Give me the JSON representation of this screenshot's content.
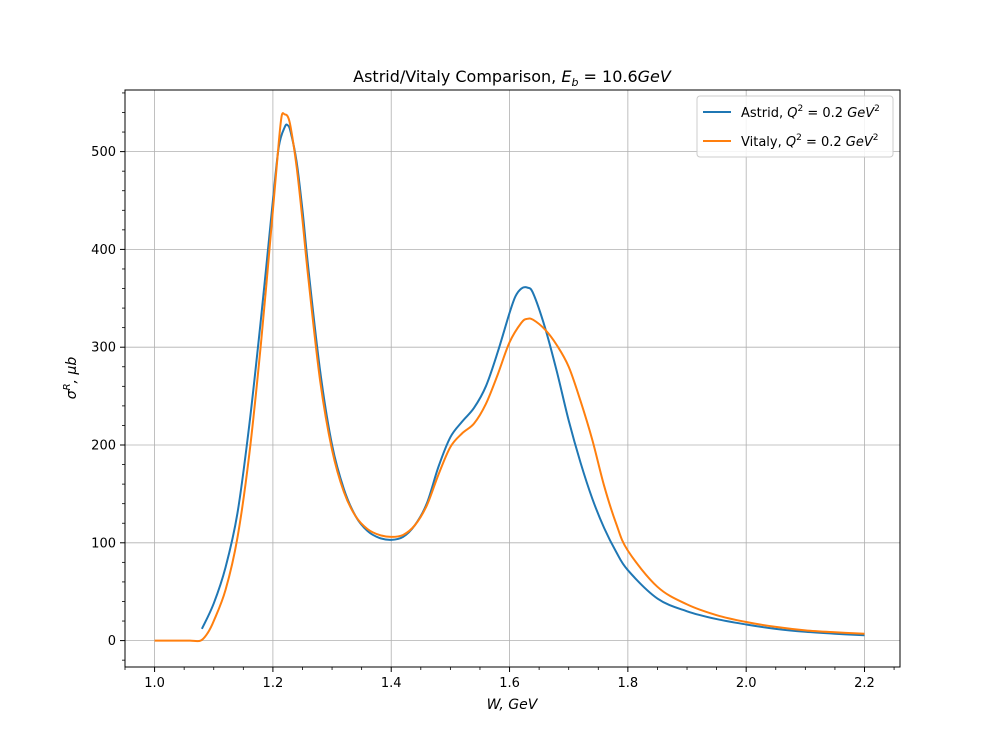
{
  "chart_data": {
    "type": "line",
    "title": "Astrid/Vitaly Comparison, E_b = 10.6GeV",
    "xlabel": "W, GeV",
    "ylabel": "σ^R, μb",
    "xlim": [
      0.95,
      2.26
    ],
    "ylim": [
      -27,
      563
    ],
    "x_ticks": [
      1.0,
      1.2,
      1.4,
      1.6,
      1.8,
      2.0,
      2.2
    ],
    "x_tick_labels": [
      "1.0",
      "1.2",
      "1.4",
      "1.6",
      "1.8",
      "2.0",
      "2.2"
    ],
    "y_ticks": [
      0,
      100,
      200,
      300,
      400,
      500
    ],
    "y_tick_labels": [
      "0",
      "100",
      "200",
      "300",
      "400",
      "500"
    ],
    "grid": true,
    "legend": "top-right",
    "series": [
      {
        "name": "Astrid, Q^2 = 0.2 GeV^2",
        "color": "#1f77b4",
        "points": [
          [
            1.08,
            12
          ],
          [
            1.1,
            38
          ],
          [
            1.12,
            75
          ],
          [
            1.14,
            130
          ],
          [
            1.16,
            220
          ],
          [
            1.18,
            330
          ],
          [
            1.2,
            450
          ],
          [
            1.21,
            505
          ],
          [
            1.22,
            525
          ],
          [
            1.225,
            527
          ],
          [
            1.23,
            520
          ],
          [
            1.24,
            490
          ],
          [
            1.25,
            440
          ],
          [
            1.26,
            380
          ],
          [
            1.28,
            275
          ],
          [
            1.3,
            200
          ],
          [
            1.32,
            155
          ],
          [
            1.34,
            127
          ],
          [
            1.36,
            112
          ],
          [
            1.38,
            105
          ],
          [
            1.4,
            103
          ],
          [
            1.42,
            106
          ],
          [
            1.44,
            118
          ],
          [
            1.46,
            140
          ],
          [
            1.48,
            178
          ],
          [
            1.5,
            208
          ],
          [
            1.52,
            224
          ],
          [
            1.54,
            238
          ],
          [
            1.56,
            260
          ],
          [
            1.58,
            295
          ],
          [
            1.6,
            335
          ],
          [
            1.61,
            352
          ],
          [
            1.62,
            360
          ],
          [
            1.63,
            361
          ],
          [
            1.64,
            355
          ],
          [
            1.66,
            320
          ],
          [
            1.68,
            275
          ],
          [
            1.7,
            225
          ],
          [
            1.72,
            182
          ],
          [
            1.74,
            145
          ],
          [
            1.76,
            115
          ],
          [
            1.78,
            91
          ],
          [
            1.8,
            72
          ],
          [
            1.85,
            43
          ],
          [
            1.9,
            30
          ],
          [
            1.95,
            22
          ],
          [
            2.0,
            16.5
          ],
          [
            2.05,
            12
          ],
          [
            2.1,
            9
          ],
          [
            2.15,
            7
          ],
          [
            2.2,
            5.5
          ]
        ]
      },
      {
        "name": "Vitaly, Q^2 = 0.2 GeV^2",
        "color": "#ff7f0e",
        "points": [
          [
            1.0,
            0
          ],
          [
            1.02,
            0
          ],
          [
            1.04,
            0
          ],
          [
            1.06,
            0
          ],
          [
            1.078,
            0
          ],
          [
            1.09,
            8
          ],
          [
            1.1,
            20
          ],
          [
            1.12,
            52
          ],
          [
            1.14,
            105
          ],
          [
            1.16,
            190
          ],
          [
            1.18,
            305
          ],
          [
            1.2,
            440
          ],
          [
            1.21,
            510
          ],
          [
            1.215,
            537
          ],
          [
            1.22,
            538
          ],
          [
            1.225,
            536
          ],
          [
            1.23,
            525
          ],
          [
            1.24,
            485
          ],
          [
            1.25,
            430
          ],
          [
            1.26,
            370
          ],
          [
            1.28,
            265
          ],
          [
            1.3,
            195
          ],
          [
            1.32,
            152
          ],
          [
            1.34,
            127
          ],
          [
            1.36,
            114
          ],
          [
            1.38,
            108
          ],
          [
            1.4,
            106
          ],
          [
            1.42,
            108
          ],
          [
            1.44,
            118
          ],
          [
            1.46,
            138
          ],
          [
            1.48,
            170
          ],
          [
            1.5,
            198
          ],
          [
            1.52,
            212
          ],
          [
            1.54,
            222
          ],
          [
            1.56,
            242
          ],
          [
            1.58,
            272
          ],
          [
            1.6,
            305
          ],
          [
            1.62,
            325
          ],
          [
            1.63,
            329
          ],
          [
            1.64,
            328
          ],
          [
            1.66,
            318
          ],
          [
            1.68,
            302
          ],
          [
            1.7,
            280
          ],
          [
            1.72,
            245
          ],
          [
            1.74,
            205
          ],
          [
            1.76,
            158
          ],
          [
            1.78,
            120
          ],
          [
            1.8,
            92
          ],
          [
            1.85,
            55
          ],
          [
            1.9,
            37
          ],
          [
            1.95,
            26
          ],
          [
            2.0,
            19
          ],
          [
            2.05,
            14
          ],
          [
            2.1,
            10.5
          ],
          [
            2.15,
            8.5
          ],
          [
            2.2,
            7
          ]
        ]
      }
    ]
  }
}
